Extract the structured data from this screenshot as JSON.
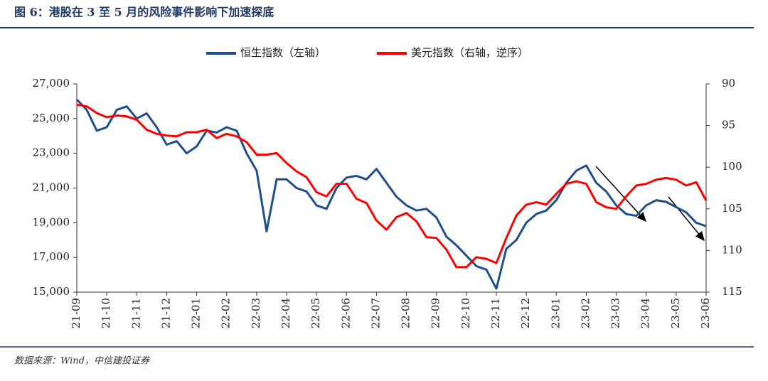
{
  "chart_data": {
    "type": "line",
    "title": "图 6：港股在 3 至 5 月的风险事件影响下加速探底",
    "source": "数据来源：Wind，中信建投证券",
    "categories": [
      "21-09",
      null,
      null,
      "21-10",
      null,
      null,
      "21-11",
      null,
      null,
      "21-12",
      null,
      null,
      "22-01",
      null,
      null,
      "22-02",
      null,
      null,
      "22-03",
      null,
      null,
      "22-04",
      null,
      null,
      "22-05",
      null,
      null,
      "22-06",
      null,
      null,
      "22-07",
      null,
      null,
      "22-08",
      null,
      null,
      "22-09",
      null,
      null,
      "22-10",
      null,
      null,
      "22-11",
      null,
      null,
      "22-12",
      null,
      null,
      "23-01",
      null,
      null,
      "23-02",
      null,
      null,
      "23-03",
      null,
      null,
      "23-04",
      null,
      null,
      "23-05",
      null,
      null,
      "23-06"
    ],
    "series": [
      {
        "name": "恒生指数（左轴）",
        "color": "#1f4e8c",
        "axis": "y",
        "values": [
          26100,
          25500,
          24300,
          24500,
          25500,
          25700,
          25000,
          25300,
          24500,
          23500,
          23700,
          23000,
          23400,
          24300,
          24200,
          24500,
          24300,
          23000,
          22000,
          18500,
          21500,
          21500,
          21000,
          20800,
          20000,
          19800,
          21000,
          21600,
          21700,
          21500,
          22100,
          21300,
          20500,
          20000,
          19700,
          19800,
          19300,
          18200,
          17700,
          17100,
          16500,
          16300,
          15200,
          17500,
          18000,
          19000,
          19500,
          19700,
          20300,
          21300,
          22000,
          22300,
          21300,
          20800,
          20000,
          19500,
          19400,
          20000,
          20300,
          20200,
          19900,
          19600,
          19000,
          18800
        ]
      },
      {
        "name": "美元指数（右轴，逆序）",
        "color": "#ff0000",
        "axis": "y2",
        "values": [
          92.5,
          92.7,
          93.5,
          94.0,
          93.8,
          93.9,
          94.3,
          95.5,
          96.0,
          96.2,
          96.3,
          95.8,
          95.8,
          95.5,
          96.5,
          96.0,
          96.3,
          97.0,
          98.5,
          98.5,
          98.3,
          99.5,
          100.5,
          101.2,
          103.0,
          103.5,
          102.0,
          102.0,
          103.8,
          104.3,
          106.4,
          107.5,
          106.0,
          105.5,
          106.5,
          108.4,
          108.5,
          109.9,
          112.0,
          112.0,
          110.8,
          111.0,
          111.5,
          108.5,
          105.8,
          104.5,
          104.2,
          104.5,
          103.2,
          102.0,
          101.7,
          102.0,
          104.2,
          104.8,
          105.0,
          103.5,
          102.2,
          102.0,
          101.5,
          101.3,
          101.5,
          102.2,
          101.8,
          104.0
        ]
      }
    ],
    "ylim": [
      15000,
      27000
    ],
    "yticks": [
      {
        "value": 15000,
        "label": "15,000"
      },
      {
        "value": 17000,
        "label": "17,000"
      },
      {
        "value": 19000,
        "label": "19,000"
      },
      {
        "value": 21000,
        "label": "21,000"
      },
      {
        "value": 23000,
        "label": "23,000"
      },
      {
        "value": 25000,
        "label": "25,000"
      },
      {
        "value": 27000,
        "label": "27,000"
      }
    ],
    "y2lim": [
      115,
      90
    ],
    "y2ticks": [
      90,
      95,
      100,
      105,
      110,
      115
    ],
    "legend": "top"
  }
}
